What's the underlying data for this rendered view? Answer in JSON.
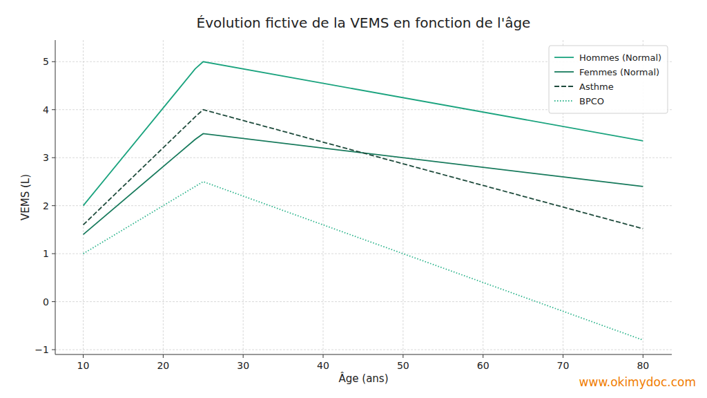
{
  "chart_data": {
    "type": "line",
    "title": "Évolution fictive de la VEMS en fonction de l'âge",
    "x_label": "Âge (ans)",
    "y_label": "VEMS (L)",
    "annotations": [
      "www.okimydoc.com"
    ],
    "x": [
      10,
      24,
      25,
      80
    ],
    "series": [
      {
        "name": "Hommes (Normal)",
        "color": "#1aa37e",
        "line_style": "solid",
        "values": [
          2.0,
          4.85,
          5.0,
          3.35
        ]
      },
      {
        "name": "Femmes (Normal)",
        "color": "#177a5c",
        "line_style": "solid",
        "values": [
          1.4,
          3.38,
          3.5,
          2.4
        ]
      },
      {
        "name": "Asthme",
        "color": "#1d4a3b",
        "line_style": "dashed",
        "values": [
          1.6,
          3.85,
          4.0,
          1.52
        ]
      },
      {
        "name": "BPCO",
        "color": "#2bb38b",
        "line_style": "dotted",
        "values": [
          1.0,
          2.4,
          2.5,
          -0.8
        ]
      }
    ],
    "xlim": [
      6.5,
      83.6
    ],
    "xticks": [
      10,
      20,
      30,
      40,
      50,
      60,
      70,
      80
    ],
    "ylim": [
      -1.1,
      5.45
    ],
    "yticks": [
      {
        "value": -1,
        "label": "−1"
      },
      0,
      1,
      2,
      3,
      4,
      5
    ],
    "grid": true,
    "legend": "upper-right"
  }
}
